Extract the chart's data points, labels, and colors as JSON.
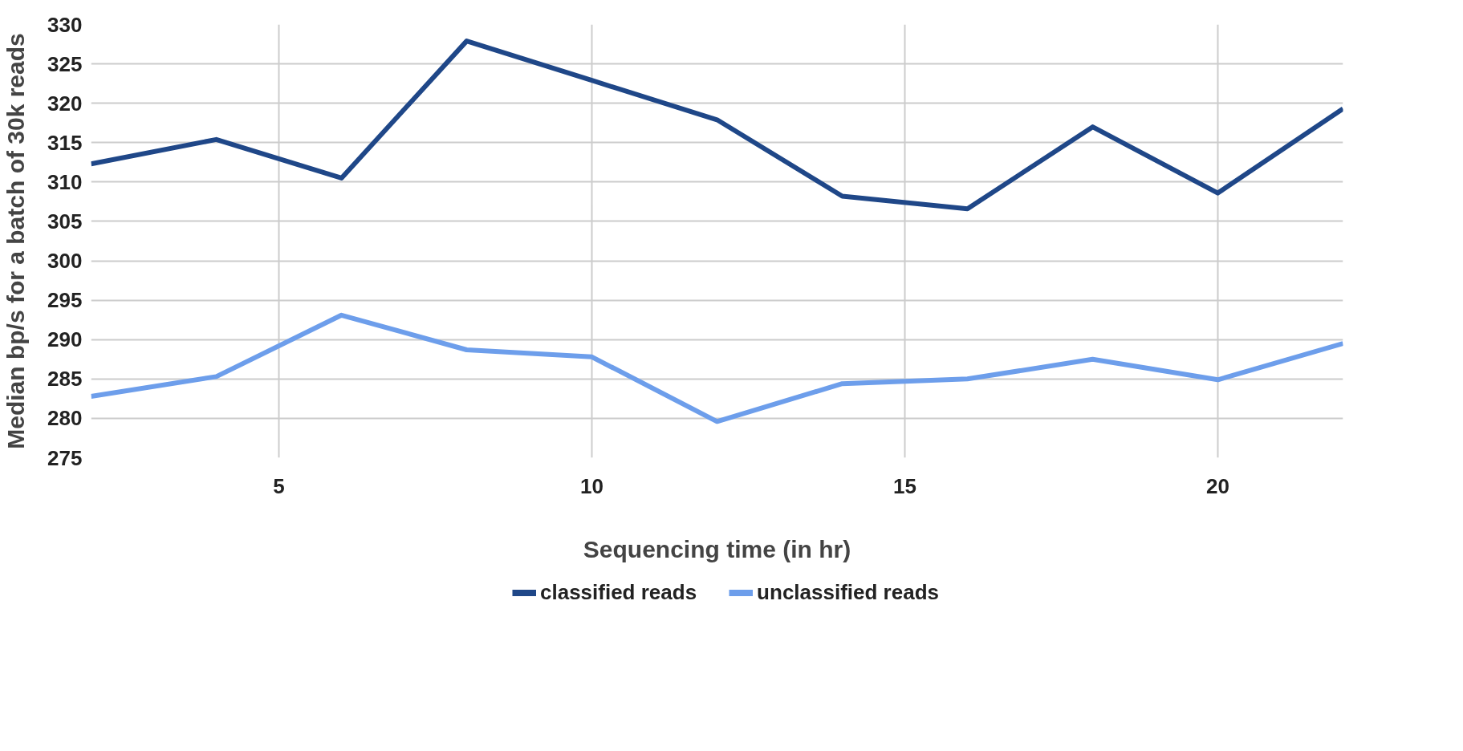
{
  "chart_data": {
    "type": "line",
    "xlabel": "Sequencing time (in hr)",
    "ylabel": "Median bp/s for a batch of 30k reads",
    "x": [
      2,
      4,
      6,
      8,
      10,
      12,
      14,
      16,
      18,
      20,
      22
    ],
    "series": [
      {
        "name": "classified reads",
        "color": "#1f4788",
        "values": [
          312.3,
          315.4,
          310.5,
          327.9,
          322.9,
          317.9,
          308.2,
          306.6,
          317.0,
          308.6,
          319.3
        ]
      },
      {
        "name": "unclassified reads",
        "color": "#6d9eeb",
        "values": [
          282.8,
          285.3,
          293.1,
          288.7,
          287.8,
          279.6,
          284.4,
          285.0,
          287.5,
          284.9,
          289.5
        ]
      }
    ],
    "xlim": [
      2,
      22
    ],
    "xticks": [
      5,
      10,
      15,
      20
    ],
    "ylim": [
      275,
      330
    ],
    "yticks": [
      275,
      280,
      285,
      290,
      295,
      300,
      305,
      310,
      315,
      320,
      325,
      330
    ],
    "grid": true,
    "legend": "bottom",
    "marker": "none",
    "line_style": "solid"
  }
}
